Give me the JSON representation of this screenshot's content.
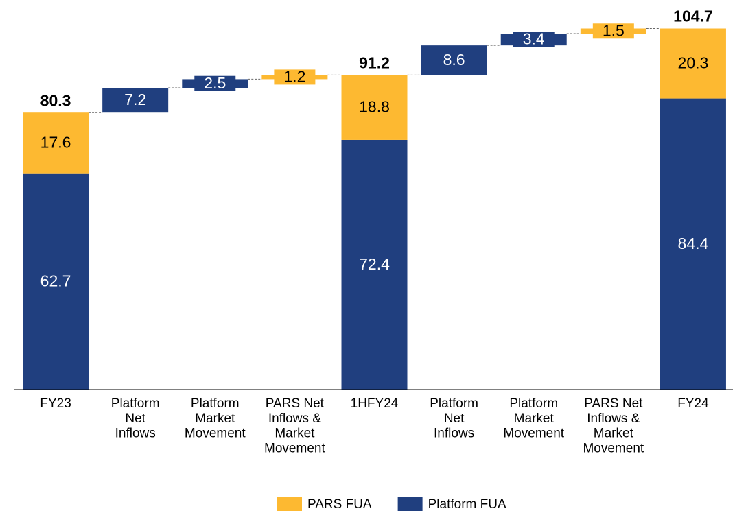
{
  "chart_data": {
    "type": "waterfall",
    "categories": [
      "FY23",
      "Platform\nNet\nInflows",
      "Platform\nMarket\nMovement",
      "PARS Net\nInflows &\nMarket\nMovement",
      "1HFY24",
      "Platform\nNet\nInflows",
      "Platform\nMarket\nMovement",
      "PARS Net\nInflows &\nMarket\nMovement",
      "FY24"
    ],
    "series": [
      {
        "name": "Platform FUA",
        "color": "#203f7f",
        "values": [
          62.7,
          7.2,
          2.5,
          null,
          72.4,
          8.6,
          3.4,
          null,
          84.4
        ]
      },
      {
        "name": "PARS FUA",
        "color": "#fdb931",
        "values": [
          17.6,
          null,
          null,
          1.2,
          18.8,
          null,
          null,
          1.5,
          20.3
        ]
      }
    ],
    "totals": [
      80.3,
      null,
      null,
      null,
      91.2,
      null,
      null,
      null,
      104.7
    ],
    "ylim": [
      0,
      105
    ],
    "legend": "bottom"
  }
}
